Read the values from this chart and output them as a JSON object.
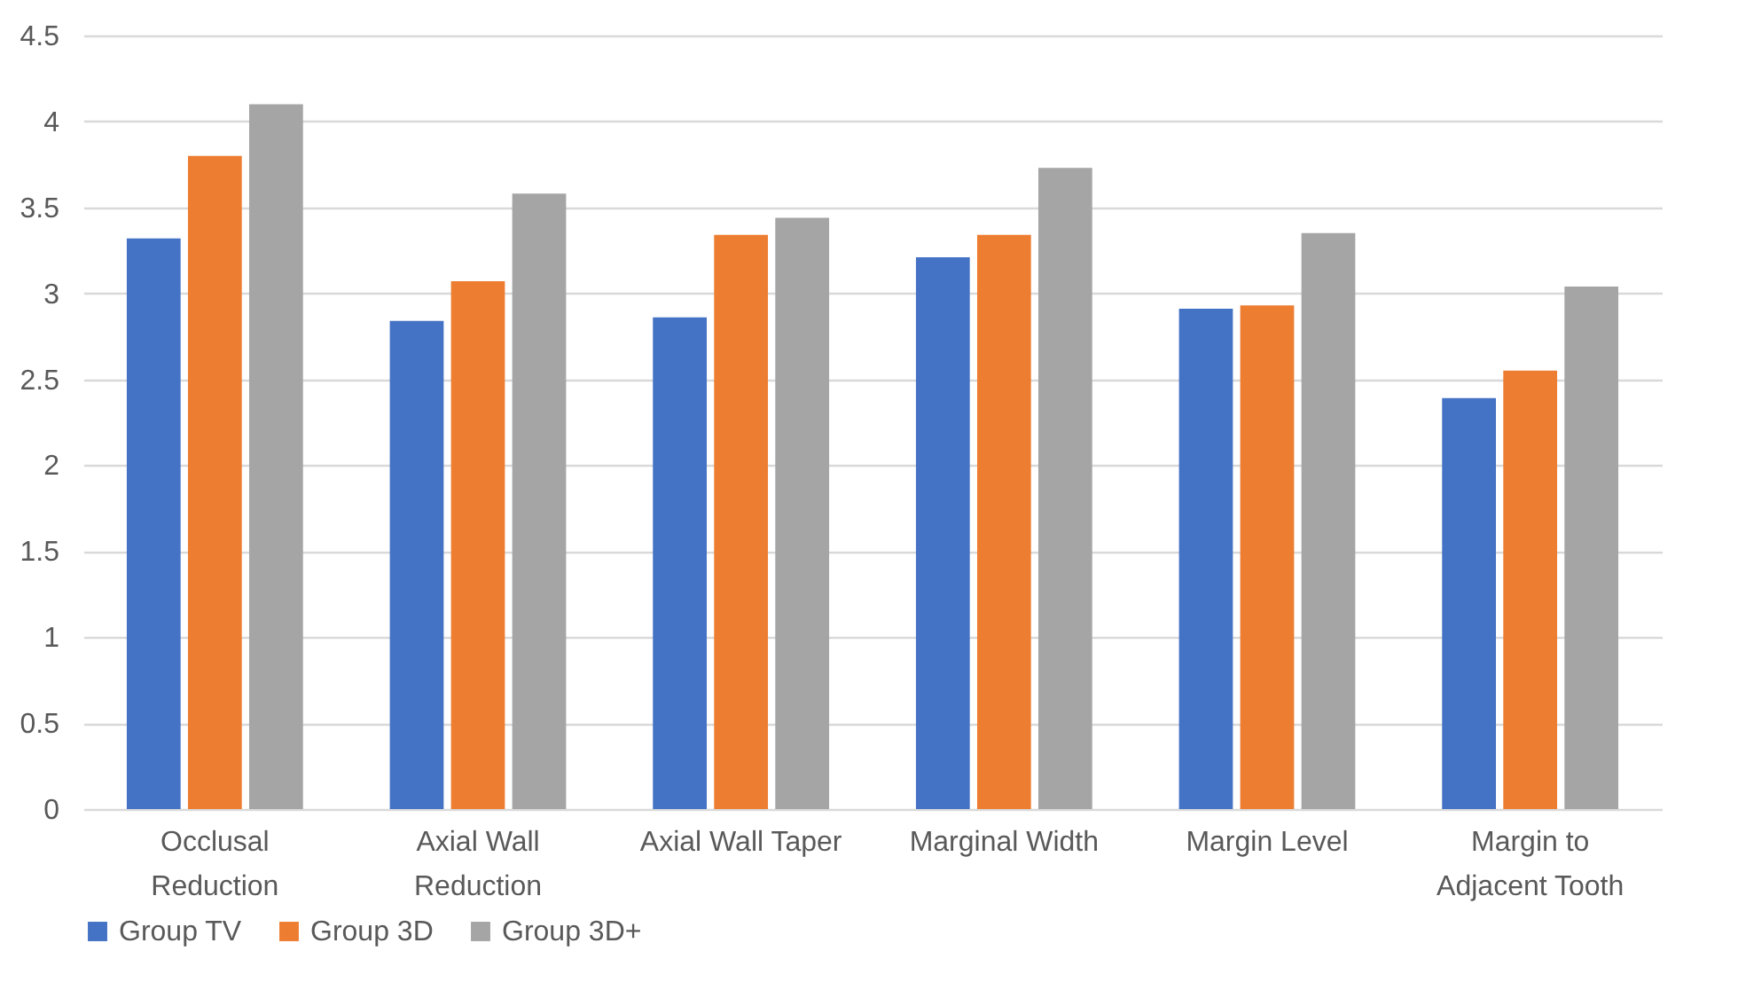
{
  "chart_data": {
    "type": "bar",
    "categories": [
      "Occlusal Reduction",
      "Axial Wall Reduction",
      "Axial Wall Taper",
      "Marginal Width",
      "Margin Level",
      "Margin to Adjacent Tooth"
    ],
    "series": [
      {
        "name": "Group TV",
        "color": "#4472c4",
        "values": [
          3.32,
          2.84,
          2.86,
          3.21,
          2.91,
          2.39
        ]
      },
      {
        "name": "Group 3D",
        "color": "#ed7d31",
        "values": [
          3.8,
          3.07,
          3.34,
          3.34,
          2.93,
          2.55
        ]
      },
      {
        "name": "Group 3D+",
        "color": "#a5a5a5",
        "values": [
          4.1,
          3.58,
          3.44,
          3.73,
          3.35,
          3.04
        ]
      }
    ],
    "ylim": [
      0,
      4.5
    ],
    "yticks": [
      0,
      0.5,
      1,
      1.5,
      2,
      2.5,
      3,
      3.5,
      4,
      4.5
    ],
    "grid": "y",
    "legend": "bottom"
  }
}
